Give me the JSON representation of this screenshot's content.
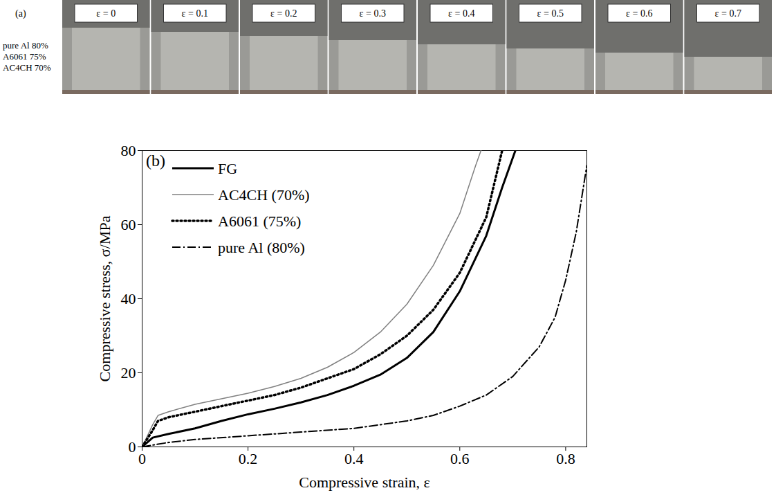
{
  "photo_strip": {
    "panel": "(a)",
    "specimen_labels": [
      "pure Al  80%",
      "A6061  75%",
      "AC4CH  70%"
    ],
    "frame_labels": [
      "ε = 0",
      "ε = 0.1",
      "ε = 0.2",
      "ε = 0.3",
      "ε = 0.4",
      "ε = 0.5",
      "ε = 0.6",
      "ε = 0.7"
    ]
  },
  "chart_data": {
    "type": "line",
    "panel": "(b)",
    "x_label": "Compressive strain, ε",
    "y_label": "Compressive stress, σ/MPa",
    "xlim": [
      0,
      0.84
    ],
    "xticks": [
      0,
      0.2,
      0.4,
      0.6,
      0.8
    ],
    "ylim": [
      0,
      80
    ],
    "yticks": [
      0,
      20,
      40,
      60,
      80
    ],
    "grid": false,
    "legend": "upper left",
    "series": [
      {
        "name": "FG",
        "color": "#000000",
        "line_style": "solid",
        "x": [
          0,
          0.02,
          0.05,
          0.1,
          0.15,
          0.2,
          0.25,
          0.3,
          0.35,
          0.4,
          0.45,
          0.5,
          0.55,
          0.6,
          0.65,
          0.68,
          0.705
        ],
        "values": [
          0,
          2.5,
          3.5,
          5,
          7,
          8.8,
          10.3,
          12,
          14,
          16.5,
          19.5,
          24,
          31,
          42,
          57,
          70,
          80
        ]
      },
      {
        "name": "AC4CH (70%)",
        "color": "#808080",
        "line_style": "thin",
        "x": [
          0,
          0.01,
          0.02,
          0.03,
          0.05,
          0.1,
          0.15,
          0.2,
          0.25,
          0.3,
          0.35,
          0.4,
          0.45,
          0.5,
          0.55,
          0.6,
          0.63,
          0.64
        ],
        "values": [
          0,
          3,
          6,
          8.5,
          9.5,
          11.5,
          13,
          14.5,
          16.3,
          18.5,
          21.5,
          25.5,
          31,
          38.5,
          49,
          63,
          76,
          80
        ]
      },
      {
        "name": "A6061 (75%)",
        "color": "#000000",
        "line_style": "dotted",
        "x": [
          0,
          0.02,
          0.03,
          0.05,
          0.1,
          0.15,
          0.2,
          0.25,
          0.3,
          0.35,
          0.4,
          0.45,
          0.5,
          0.55,
          0.6,
          0.65,
          0.68
        ],
        "values": [
          0,
          4.5,
          7,
          8,
          9.5,
          11,
          12.5,
          14,
          16,
          18.5,
          21,
          25,
          30,
          37,
          47,
          62,
          80
        ]
      },
      {
        "name": "pure Al (80%)",
        "color": "#000000",
        "line_style": "dashdot",
        "x": [
          0,
          0.05,
          0.1,
          0.2,
          0.3,
          0.4,
          0.45,
          0.5,
          0.55,
          0.6,
          0.65,
          0.7,
          0.75,
          0.78,
          0.8,
          0.82,
          0.84
        ],
        "values": [
          0,
          1.2,
          2,
          3,
          4,
          5,
          6,
          7,
          8.5,
          11,
          14,
          19,
          27,
          35,
          45,
          58,
          76
        ]
      }
    ]
  }
}
